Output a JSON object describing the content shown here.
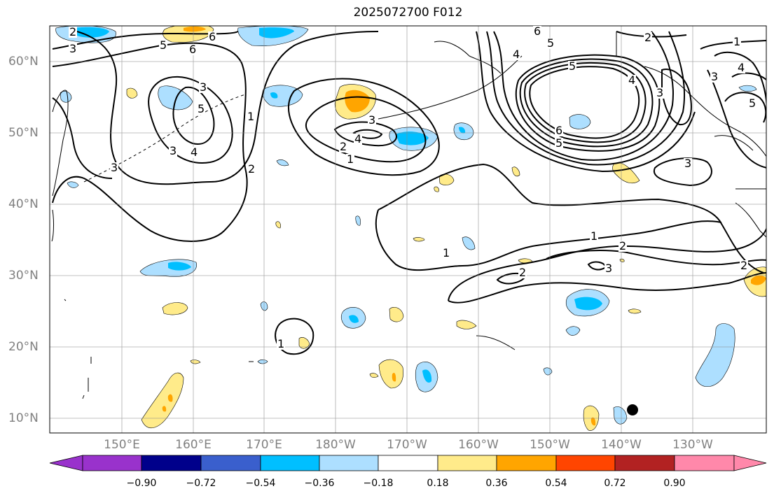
{
  "title": "2025072700 F012",
  "lat_labels": [
    "60°N",
    "50°N",
    "40°N",
    "30°N",
    "20°N",
    "10°N"
  ],
  "lon_labels": [
    "150°E",
    "160°E",
    "170°E",
    "180°W",
    "170°W",
    "160°W",
    "150°W",
    "140°W",
    "130°W"
  ],
  "colorbar": {
    "ticks": [
      "−0.90",
      "−0.72",
      "−0.54",
      "−0.36",
      "−0.18",
      "0.18",
      "0.36",
      "0.54",
      "0.72",
      "0.90"
    ],
    "colors": [
      "#9932CC",
      "#00008B",
      "#3A5FCD",
      "#00BFFF",
      "#ADDFFF",
      "#FFFFFF",
      "#FFEB8A",
      "#FFA500",
      "#FF4500",
      "#B22222",
      "#FF88AA"
    ]
  },
  "contour_labels": [
    "1",
    "2",
    "3",
    "4",
    "5",
    "6"
  ],
  "colors": {
    "positive_shade": "#FFEB8A",
    "strong_positive": "#FFA500",
    "negative_shade": "#ADDFFF",
    "strong_negative": "#00BFFF"
  }
}
